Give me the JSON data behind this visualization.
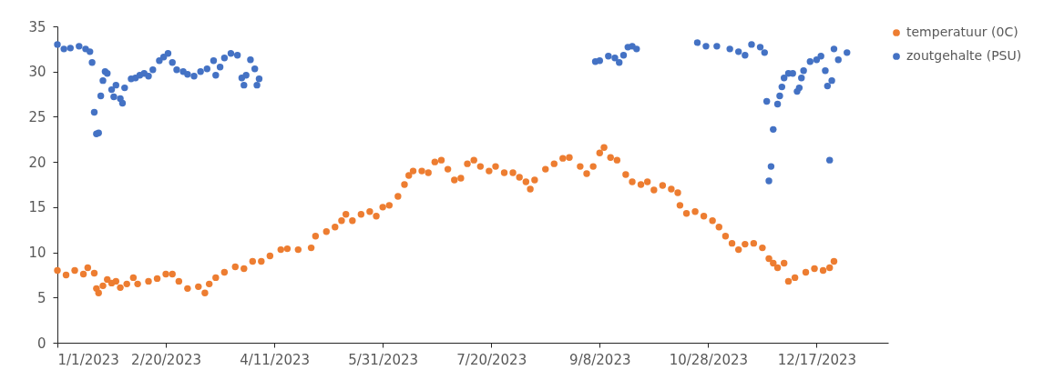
{
  "chart_data": {
    "type": "scatter",
    "xlim": [
      "2023-01-01",
      "2024-01-19"
    ],
    "xticks": [
      {
        "value": "2023-01-01",
        "label": "1/1/2023"
      },
      {
        "value": "2023-02-20",
        "label": "2/20/2023"
      },
      {
        "value": "2023-04-11",
        "label": "4/11/2023"
      },
      {
        "value": "2023-05-31",
        "label": "5/31/2023"
      },
      {
        "value": "2023-07-20",
        "label": "7/20/2023"
      },
      {
        "value": "2023-09-08",
        "label": "9/8/2023"
      },
      {
        "value": "2023-10-28",
        "label": "10/28/2023"
      },
      {
        "value": "2023-12-17",
        "label": "12/17/2023"
      }
    ],
    "ylim": [
      0,
      35
    ],
    "yticks": [
      0,
      5,
      10,
      15,
      20,
      25,
      30,
      35
    ],
    "legend": "right",
    "marker": "circle",
    "series": [
      {
        "name": "temperatuur (0C)",
        "color": "#ed7d31",
        "x": [
          "2023-01-01",
          "2023-01-05",
          "2023-01-09",
          "2023-01-13",
          "2023-01-15",
          "2023-01-18",
          "2023-01-19",
          "2023-01-20",
          "2023-01-22",
          "2023-01-24",
          "2023-01-26",
          "2023-01-28",
          "2023-01-30",
          "2023-02-02",
          "2023-02-05",
          "2023-02-07",
          "2023-02-12",
          "2023-02-16",
          "2023-02-20",
          "2023-02-23",
          "2023-02-26",
          "2023-03-02",
          "2023-03-07",
          "2023-03-10",
          "2023-03-12",
          "2023-03-15",
          "2023-03-19",
          "2023-03-24",
          "2023-03-28",
          "2023-04-01",
          "2023-04-05",
          "2023-04-09",
          "2023-04-14",
          "2023-04-17",
          "2023-04-22",
          "2023-04-28",
          "2023-04-30",
          "2023-05-05",
          "2023-05-09",
          "2023-05-12",
          "2023-05-14",
          "2023-05-17",
          "2023-05-21",
          "2023-05-25",
          "2023-05-28",
          "2023-05-31",
          "2023-06-03",
          "2023-06-07",
          "2023-06-10",
          "2023-06-12",
          "2023-06-14",
          "2023-06-18",
          "2023-06-21",
          "2023-06-24",
          "2023-06-27",
          "2023-06-30",
          "2023-07-03",
          "2023-07-06",
          "2023-07-09",
          "2023-07-12",
          "2023-07-15",
          "2023-07-19",
          "2023-07-22",
          "2023-07-26",
          "2023-07-30",
          "2023-08-02",
          "2023-08-05",
          "2023-08-07",
          "2023-08-09",
          "2023-08-14",
          "2023-08-18",
          "2023-08-22",
          "2023-08-25",
          "2023-08-30",
          "2023-09-02",
          "2023-09-05",
          "2023-09-08",
          "2023-09-10",
          "2023-09-13",
          "2023-09-16",
          "2023-09-20",
          "2023-09-23",
          "2023-09-27",
          "2023-09-30",
          "2023-10-03",
          "2023-10-07",
          "2023-10-11",
          "2023-10-14",
          "2023-10-15",
          "2023-10-18",
          "2023-10-22",
          "2023-10-26",
          "2023-10-30",
          "2023-11-02",
          "2023-11-05",
          "2023-11-08",
          "2023-11-11",
          "2023-11-14",
          "2023-11-18",
          "2023-11-22",
          "2023-11-25",
          "2023-11-27",
          "2023-11-29",
          "2023-12-02",
          "2023-12-04",
          "2023-12-07",
          "2023-12-12",
          "2023-12-16",
          "2023-12-20",
          "2023-12-23",
          "2023-12-25"
        ],
        "values": [
          8.0,
          7.5,
          8.0,
          7.6,
          8.3,
          7.7,
          6.0,
          5.5,
          6.3,
          7.0,
          6.6,
          6.8,
          6.1,
          6.5,
          7.2,
          6.5,
          6.8,
          7.1,
          7.6,
          7.6,
          6.8,
          6.0,
          6.2,
          5.5,
          6.5,
          7.2,
          7.8,
          8.4,
          8.2,
          9.0,
          9.0,
          9.6,
          10.3,
          10.4,
          10.3,
          10.5,
          11.8,
          12.3,
          12.8,
          13.5,
          14.2,
          13.5,
          14.2,
          14.5,
          14.0,
          15.0,
          15.2,
          16.2,
          17.5,
          18.5,
          19.0,
          19.0,
          18.8,
          20.0,
          20.2,
          19.2,
          18.0,
          18.2,
          19.8,
          20.2,
          19.5,
          19.0,
          19.5,
          18.8,
          18.8,
          18.3,
          17.8,
          17.0,
          18.0,
          19.2,
          19.8,
          20.4,
          20.5,
          19.5,
          18.7,
          19.5,
          21.0,
          21.6,
          20.5,
          20.2,
          18.6,
          17.8,
          17.5,
          17.8,
          16.9,
          17.4,
          17.0,
          16.6,
          15.2,
          14.3,
          14.5,
          14.0,
          13.5,
          12.8,
          11.8,
          11.0,
          10.3,
          10.9,
          11.0,
          10.5,
          9.3,
          8.8,
          8.3,
          8.8,
          6.8,
          7.2,
          7.8,
          8.2,
          8.0,
          8.3,
          9.0
        ]
      },
      {
        "name": "zoutgehalte (PSU)",
        "color": "#4472c4",
        "x": [
          "2023-01-01",
          "2023-01-04",
          "2023-01-07",
          "2023-01-11",
          "2023-01-14",
          "2023-01-16",
          "2023-01-17",
          "2023-01-18",
          "2023-01-19",
          "2023-01-20",
          "2023-01-21",
          "2023-01-22",
          "2023-01-23",
          "2023-01-24",
          "2023-01-26",
          "2023-01-27",
          "2023-01-28",
          "2023-01-30",
          "2023-01-31",
          "2023-02-01",
          "2023-02-04",
          "2023-02-06",
          "2023-02-08",
          "2023-02-10",
          "2023-02-12",
          "2023-02-14",
          "2023-02-17",
          "2023-02-19",
          "2023-02-21",
          "2023-02-23",
          "2023-02-25",
          "2023-02-28",
          "2023-03-02",
          "2023-03-05",
          "2023-03-08",
          "2023-03-11",
          "2023-03-14",
          "2023-03-15",
          "2023-03-17",
          "2023-03-19",
          "2023-03-22",
          "2023-03-25",
          "2023-03-27",
          "2023-03-28",
          "2023-03-29",
          "2023-03-31",
          "2023-04-02",
          "2023-04-03",
          "2023-04-04",
          "2023-09-06",
          "2023-09-08",
          "2023-09-12",
          "2023-09-15",
          "2023-09-17",
          "2023-09-19",
          "2023-09-21",
          "2023-09-23",
          "2023-09-25",
          "2023-10-23",
          "2023-10-27",
          "2023-11-01",
          "2023-11-07",
          "2023-11-11",
          "2023-11-14",
          "2023-11-17",
          "2023-11-21",
          "2023-11-23",
          "2023-11-24",
          "2023-11-25",
          "2023-11-26",
          "2023-11-27",
          "2023-11-29",
          "2023-11-30",
          "2023-12-01",
          "2023-12-02",
          "2023-12-04",
          "2023-12-06",
          "2023-12-08",
          "2023-12-09",
          "2023-12-10",
          "2023-12-11",
          "2023-12-14",
          "2023-12-17",
          "2023-12-19",
          "2023-12-21",
          "2023-12-22",
          "2023-12-23",
          "2023-12-24",
          "2023-12-25",
          "2023-12-27",
          "2023-12-31"
        ],
        "values": [
          33.0,
          32.5,
          32.6,
          32.8,
          32.5,
          32.2,
          31.0,
          25.5,
          23.1,
          23.2,
          27.3,
          29.0,
          30.0,
          29.8,
          28.0,
          27.2,
          28.5,
          27.0,
          26.5,
          28.2,
          29.2,
          29.3,
          29.6,
          29.8,
          29.5,
          30.2,
          31.2,
          31.6,
          32.0,
          31.0,
          30.2,
          30.0,
          29.7,
          29.5,
          30.0,
          30.3,
          31.2,
          29.6,
          30.5,
          31.5,
          32.0,
          31.8,
          29.3,
          28.5,
          29.6,
          31.3,
          30.3,
          28.5,
          29.2,
          31.1,
          31.2,
          31.7,
          31.5,
          31.0,
          31.8,
          32.7,
          32.8,
          32.5,
          33.2,
          32.8,
          32.8,
          32.5,
          32.2,
          31.8,
          33.0,
          32.7,
          32.1,
          26.7,
          17.9,
          19.5,
          23.6,
          26.4,
          27.3,
          28.3,
          29.3,
          29.8,
          29.8,
          27.8,
          28.2,
          29.3,
          30.1,
          31.1,
          31.3,
          31.7,
          30.1,
          28.4,
          20.2,
          29.0,
          32.5,
          31.3,
          32.1
        ]
      }
    ]
  }
}
